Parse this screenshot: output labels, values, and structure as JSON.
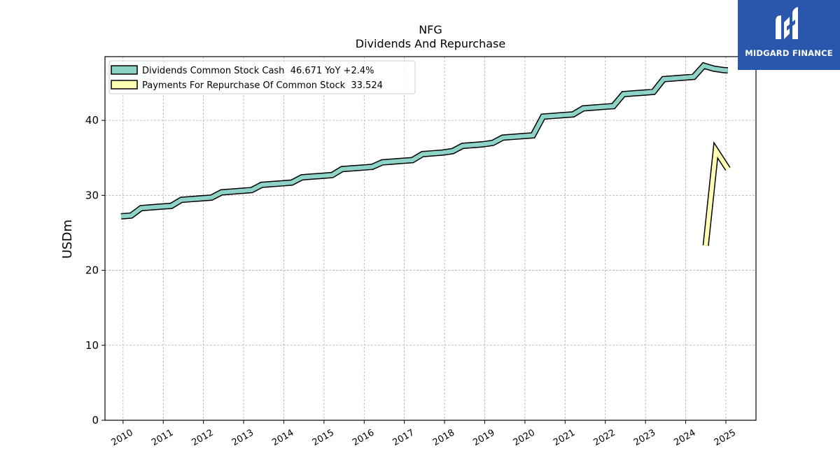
{
  "chart_data": {
    "type": "line",
    "title": "NFG",
    "subtitle": "Dividends And Repurchase",
    "ylabel": "USDm",
    "xlabel": "",
    "ylim": [
      0,
      48.5
    ],
    "xlim": [
      2009.55,
      2025.75
    ],
    "yticks": [
      0,
      10,
      20,
      30,
      40
    ],
    "xticks": [
      "2010",
      "2011",
      "2012",
      "2013",
      "2014",
      "2015",
      "2016",
      "2017",
      "2018",
      "2019",
      "2020",
      "2021",
      "2022",
      "2023",
      "2024",
      "2025"
    ],
    "grid": true,
    "legend_position": "top-left",
    "series": [
      {
        "name": "Dividends Common Stock Cash  46.671 YoY +2.4%",
        "color": "#8dd3c7",
        "x": [
          2009.95,
          2010.2,
          2010.45,
          2010.7,
          2010.95,
          2011.2,
          2011.45,
          2011.7,
          2011.95,
          2012.2,
          2012.45,
          2012.7,
          2012.95,
          2013.2,
          2013.45,
          2013.7,
          2013.95,
          2014.2,
          2014.45,
          2014.7,
          2014.95,
          2015.2,
          2015.45,
          2015.7,
          2015.95,
          2016.2,
          2016.45,
          2016.7,
          2016.95,
          2017.2,
          2017.45,
          2017.7,
          2017.95,
          2018.2,
          2018.45,
          2018.7,
          2018.95,
          2019.2,
          2019.45,
          2019.7,
          2019.95,
          2020.2,
          2020.45,
          2020.7,
          2020.95,
          2021.2,
          2021.45,
          2021.7,
          2021.95,
          2022.2,
          2022.45,
          2022.7,
          2022.95,
          2023.2,
          2023.45,
          2023.7,
          2023.95,
          2024.2,
          2024.45,
          2024.7,
          2024.95,
          2025.05
        ],
        "values": [
          27.2,
          27.3,
          28.3,
          28.4,
          28.5,
          28.6,
          29.4,
          29.5,
          29.6,
          29.7,
          30.4,
          30.5,
          30.6,
          30.7,
          31.4,
          31.5,
          31.6,
          31.7,
          32.4,
          32.5,
          32.6,
          32.7,
          33.5,
          33.6,
          33.7,
          33.8,
          34.4,
          34.5,
          34.6,
          34.7,
          35.5,
          35.6,
          35.7,
          35.9,
          36.6,
          36.7,
          36.8,
          37.0,
          37.7,
          37.8,
          37.9,
          38.0,
          40.5,
          40.6,
          40.7,
          40.8,
          41.6,
          41.7,
          41.8,
          41.9,
          43.5,
          43.6,
          43.7,
          43.8,
          45.5,
          45.6,
          45.7,
          45.8,
          47.3,
          46.9,
          46.7,
          46.671
        ]
      },
      {
        "name": "Payments For Repurchase Of Common Stock  33.524",
        "color": "#ffffb3",
        "x": [
          2024.5,
          2024.75,
          2025.05
        ],
        "values": [
          23.3,
          36.0,
          33.524
        ]
      }
    ]
  },
  "logo": {
    "text": "MIDGARD FINANCE",
    "color": "#2a56ab"
  }
}
